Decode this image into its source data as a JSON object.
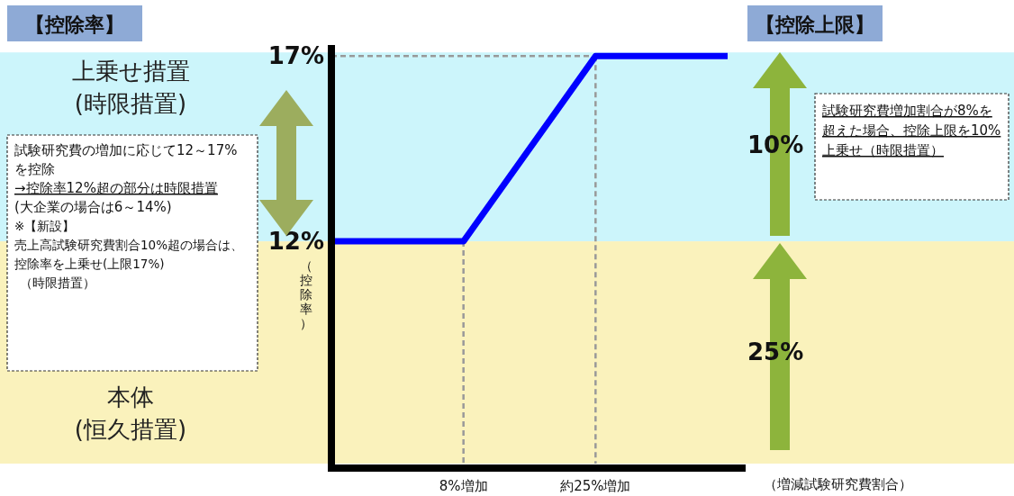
{
  "chart_data": {
    "type": "line",
    "title": "【控除率】",
    "categories": [
      null,
      "8%増加",
      "約25%増加",
      null
    ],
    "series": [
      {
        "color": "#0000ff",
        "values": [
          12,
          12,
          17,
          17
        ]
      }
    ],
    "xlabel": "（増減試験研究費割合）",
    "ylabel": "（控除率）",
    "ylim": [
      6,
      17.3
    ],
    "yticks": [
      {
        "value": 12,
        "label": "12%"
      },
      {
        "value": 17,
        "label": "17%"
      }
    ],
    "marker": "none",
    "line_style": "solid",
    "bands": [
      {
        "axis": "y",
        "from": 12,
        "to": 17.1,
        "color": "#ccf5fb",
        "label": "上乗せ措置\n(時限措置)"
      },
      {
        "axis": "y",
        "from": 6,
        "to": 12,
        "color": "#faf2bc",
        "label": "本体\n(恒久措置)"
      }
    ],
    "ref_lines": [
      {
        "axis": "x",
        "value": "8%増加",
        "color": "#999999",
        "line_style": "dashed"
      },
      {
        "axis": "x",
        "value": "約25%増加",
        "color": "#999999",
        "line_style": "dashed"
      },
      {
        "axis": "y",
        "value": 17,
        "color": "#999999",
        "line_style": "dashed"
      }
    ],
    "annotations": [
      "【控除上限】",
      "10%",
      "25%",
      "試験研究費の増加に応じて12～17%を控除",
      "→控除率12%超の部分は時限措置",
      "(大企業の場合は6～14%)",
      "※【新設】",
      "売上高試験研究費割合10%超の場合は、控除率を上乗せ(上限17%)",
      "（時限措置）",
      "試験研究費増加割合が8%を超えた場合、控除上限を10%上乗せ（時限措置）"
    ]
  }
}
